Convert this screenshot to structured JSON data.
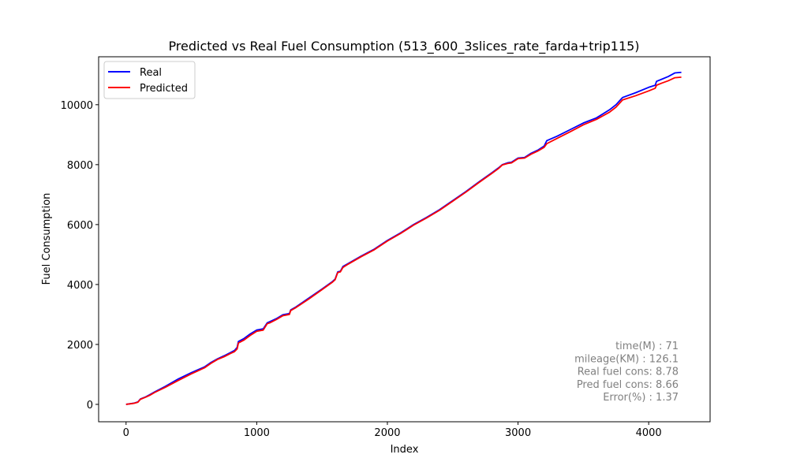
{
  "chart_data": {
    "type": "line",
    "title": "Predicted vs Real Fuel Consumption (513_600_3slices_rate_farda+trip115)",
    "xlabel": "Index",
    "ylabel": "Fuel Consumption",
    "xlim": [
      -210,
      4470
    ],
    "ylim": [
      -580,
      11600
    ],
    "xticks": [
      0,
      1000,
      2000,
      3000,
      4000
    ],
    "yticks": [
      0,
      2000,
      4000,
      6000,
      8000,
      10000
    ],
    "grid": false,
    "legend_position": "upper-left",
    "series": [
      {
        "name": "Real",
        "color": "#0000ff",
        "x": [
          0,
          60,
          90,
          110,
          150,
          180,
          220,
          300,
          400,
          500,
          600,
          650,
          700,
          750,
          800,
          830,
          850,
          860,
          900,
          950,
          1000,
          1050,
          1080,
          1100,
          1150,
          1200,
          1250,
          1260,
          1300,
          1400,
          1500,
          1580,
          1600,
          1620,
          1640,
          1660,
          1700,
          1800,
          1900,
          2000,
          2100,
          2150,
          2200,
          2300,
          2400,
          2500,
          2600,
          2700,
          2800,
          2850,
          2880,
          2920,
          2950,
          3000,
          3050,
          3100,
          3150,
          3200,
          3220,
          3300,
          3400,
          3500,
          3600,
          3700,
          3750,
          3800,
          3900,
          4000,
          4050,
          4060,
          4100,
          4150,
          4200,
          4250
        ],
        "y": [
          0,
          40,
          80,
          180,
          250,
          320,
          420,
          600,
          850,
          1060,
          1250,
          1400,
          1520,
          1620,
          1730,
          1800,
          1900,
          2100,
          2190,
          2350,
          2480,
          2520,
          2720,
          2760,
          2860,
          2990,
          3030,
          3150,
          3250,
          3550,
          3850,
          4100,
          4180,
          4420,
          4440,
          4600,
          4700,
          4950,
          5180,
          5470,
          5720,
          5860,
          6000,
          6240,
          6500,
          6800,
          7100,
          7420,
          7730,
          7890,
          8000,
          8060,
          8080,
          8220,
          8240,
          8380,
          8480,
          8620,
          8800,
          8950,
          9170,
          9390,
          9560,
          9830,
          10000,
          10240,
          10400,
          10580,
          10650,
          10780,
          10850,
          10940,
          11060,
          11080
        ]
      },
      {
        "name": "Predicted",
        "color": "#ff0000",
        "x": [
          0,
          60,
          90,
          110,
          150,
          180,
          220,
          300,
          400,
          500,
          600,
          650,
          700,
          750,
          800,
          830,
          850,
          860,
          900,
          950,
          1000,
          1050,
          1080,
          1100,
          1150,
          1200,
          1250,
          1260,
          1300,
          1400,
          1500,
          1580,
          1600,
          1620,
          1640,
          1660,
          1700,
          1800,
          1900,
          2000,
          2100,
          2150,
          2200,
          2300,
          2400,
          2500,
          2600,
          2700,
          2800,
          2850,
          2880,
          2920,
          2950,
          3000,
          3050,
          3100,
          3150,
          3200,
          3220,
          3300,
          3400,
          3500,
          3600,
          3700,
          3750,
          3800,
          3900,
          4000,
          4050,
          4060,
          4100,
          4150,
          4200,
          4250
        ],
        "y": [
          0,
          35,
          70,
          170,
          240,
          300,
          400,
          570,
          800,
          1020,
          1220,
          1370,
          1500,
          1590,
          1700,
          1760,
          1850,
          2050,
          2140,
          2300,
          2440,
          2480,
          2690,
          2720,
          2830,
          2960,
          3000,
          3130,
          3230,
          3520,
          3830,
          4080,
          4160,
          4400,
          4420,
          4570,
          4680,
          4930,
          5160,
          5450,
          5700,
          5840,
          5980,
          6220,
          6480,
          6780,
          7080,
          7400,
          7710,
          7870,
          7990,
          8040,
          8060,
          8200,
          8220,
          8350,
          8450,
          8580,
          8700,
          8880,
          9100,
          9330,
          9510,
          9750,
          9920,
          10160,
          10300,
          10460,
          10550,
          10650,
          10720,
          10800,
          10900,
          10920
        ]
      }
    ],
    "annotation_lines": [
      "time(M) : 71",
      "mileage(KM) : 126.1",
      "Real fuel cons: 8.78",
      "Pred fuel cons: 8.66",
      "Error(%) : 1.37"
    ],
    "annotation_color": "#808080",
    "axis_color": "#000000"
  }
}
